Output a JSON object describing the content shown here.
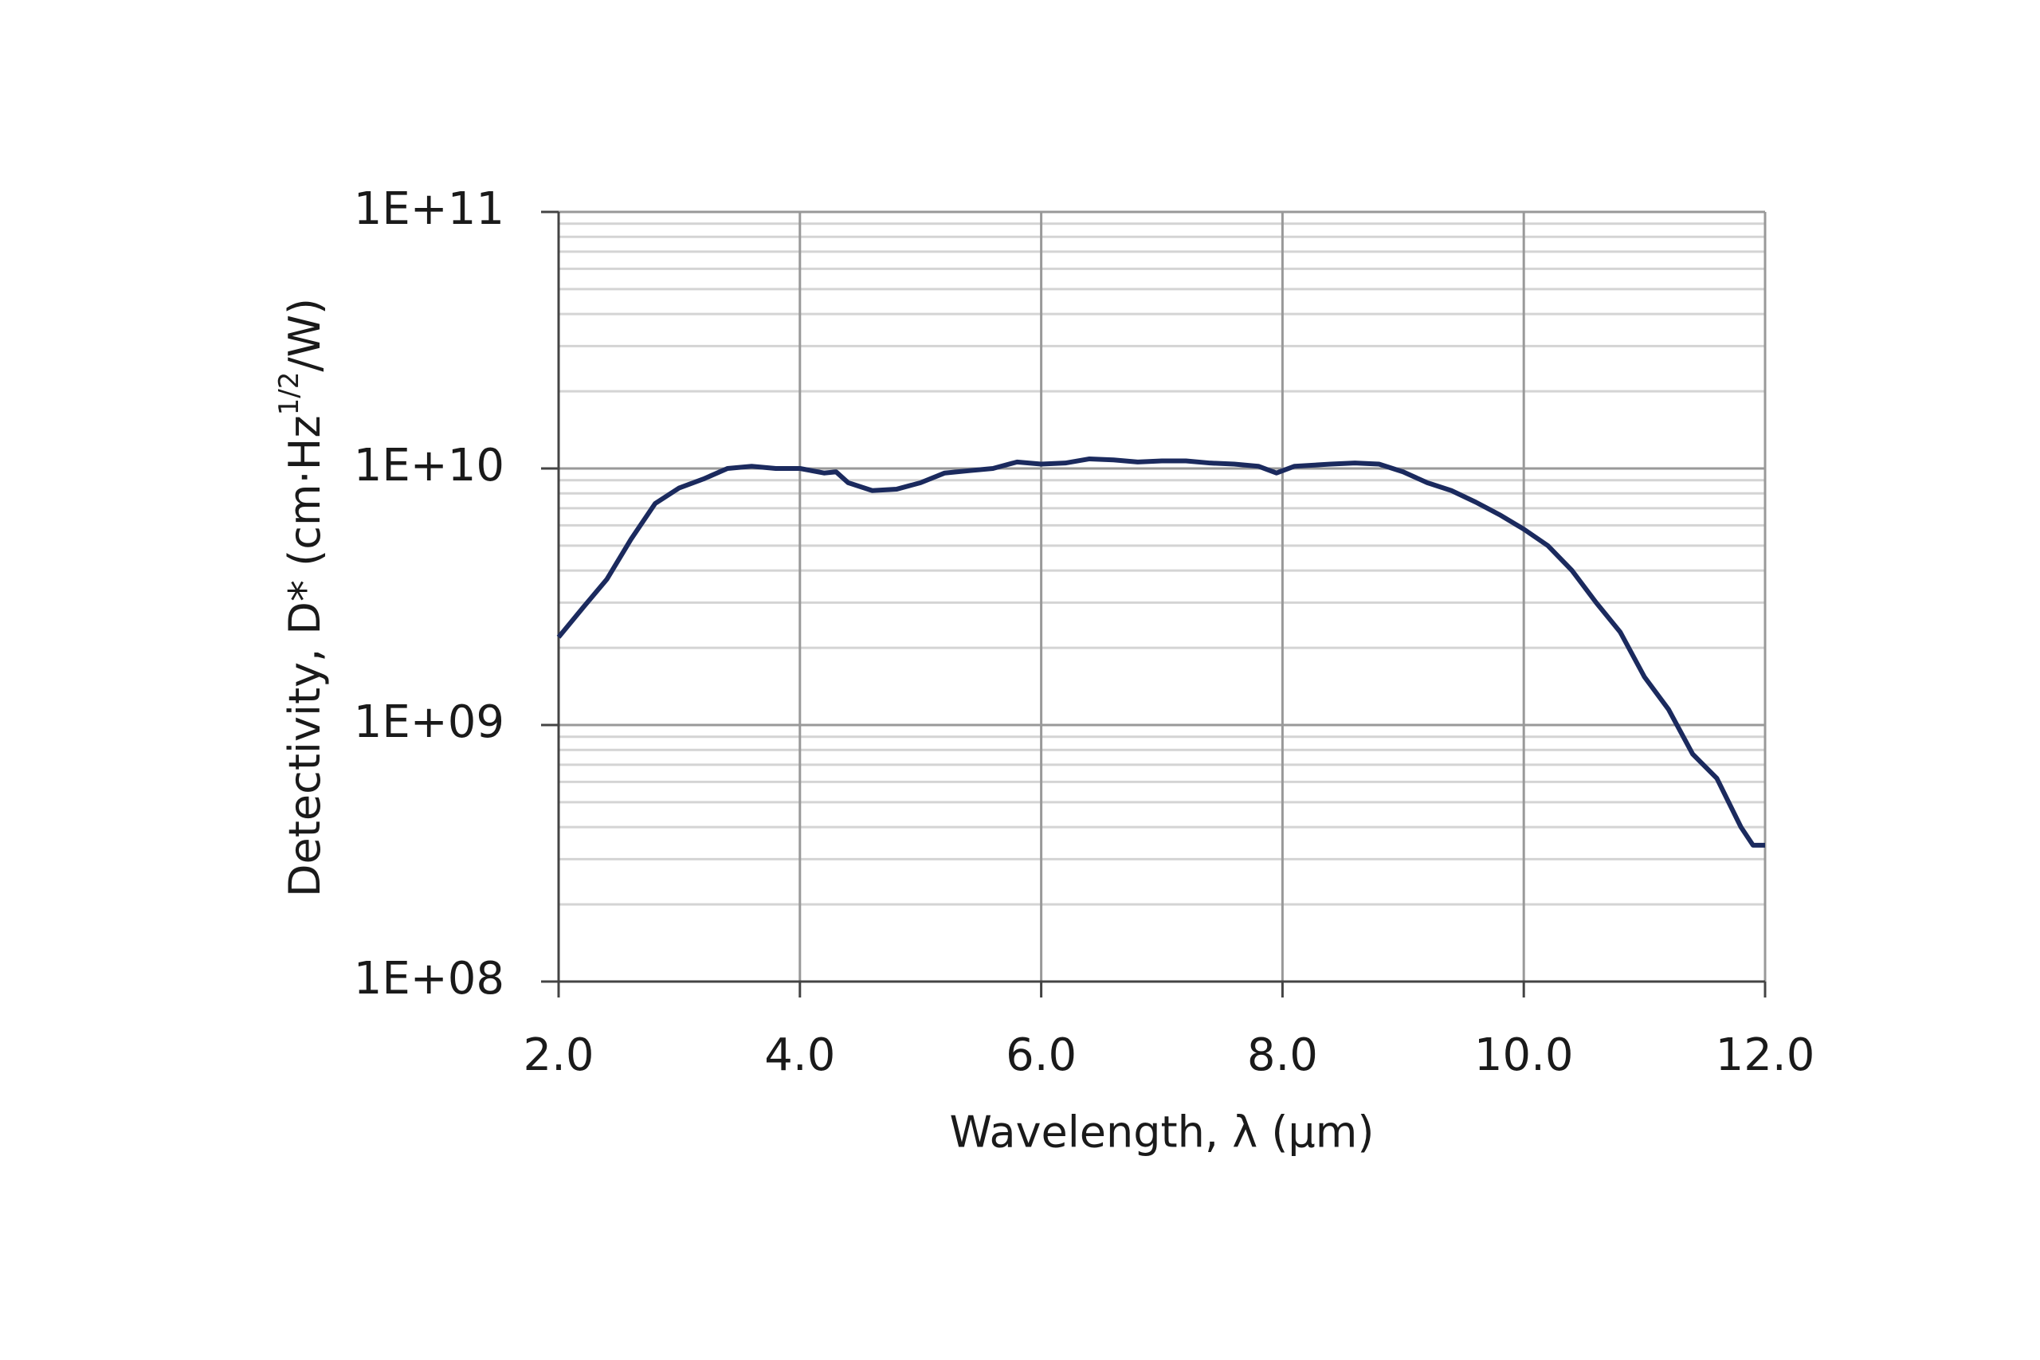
{
  "chart_data": {
    "type": "line",
    "xlabel": "Wavelength, λ (µm)",
    "ylabel": "Detectivity, D* (cm·Hz",
    "ylabel_sup": "1/2",
    "ylabel_end": "/W)",
    "x": [
      2.0,
      2.2,
      2.4,
      2.6,
      2.8,
      3.0,
      3.2,
      3.4,
      3.6,
      3.8,
      4.0,
      4.2,
      4.3,
      4.4,
      4.6,
      4.8,
      5.0,
      5.2,
      5.4,
      5.6,
      5.8,
      6.0,
      6.2,
      6.4,
      6.6,
      6.8,
      7.0,
      7.2,
      7.4,
      7.6,
      7.8,
      7.95,
      8.1,
      8.4,
      8.6,
      8.8,
      9.0,
      9.2,
      9.4,
      9.6,
      9.8,
      10.0,
      10.2,
      10.4,
      10.6,
      10.8,
      11.0,
      11.2,
      11.4,
      11.6,
      11.8,
      11.9,
      12.0
    ],
    "series": [
      {
        "name": "D*",
        "color": "#1b2a5e",
        "values": [
          2200000000,
          2860000000,
          3700000000,
          5300000000,
          7300000000,
          8400000000,
          9100000000,
          10000000000,
          10200000000,
          10000000000,
          10000000000,
          9600000000,
          9700000000,
          8800000000,
          8200000000,
          8300000000,
          8800000000,
          9600000000,
          9800000000,
          10000000000,
          10600000000,
          10400000000,
          10500000000,
          10900000000,
          10800000000,
          10600000000,
          10700000000,
          10700000000,
          10500000000,
          10400000000,
          10200000000,
          9600000000,
          10200000000,
          10400000000,
          10500000000,
          10400000000,
          9700000000,
          8800000000,
          8200000000,
          7400000000,
          6600000000,
          5800000000,
          5000000000,
          4000000000,
          3000000000,
          2300000000,
          1540000000,
          1150000000,
          770000000,
          620000000,
          400000000,
          340000000,
          340000000
        ]
      }
    ],
    "xlim": [
      2,
      12
    ],
    "xticks": [
      {
        "value": 2,
        "label": "2.0"
      },
      {
        "value": 4,
        "label": "4.0"
      },
      {
        "value": 6,
        "label": "6.0"
      },
      {
        "value": 8,
        "label": "8.0"
      },
      {
        "value": 10,
        "label": "10.0"
      },
      {
        "value": 12,
        "label": "12.0"
      }
    ],
    "ylim": [
      100000000,
      100000000000
    ],
    "yticks": [
      {
        "value": 100000000,
        "label": "1E+08"
      },
      {
        "value": 1000000000,
        "label": "1E+09"
      },
      {
        "value": 10000000000,
        "label": "1E+10"
      },
      {
        "value": 100000000000,
        "label": "1E+11"
      }
    ],
    "ylog": true,
    "grid": true,
    "minor_grid": true
  }
}
